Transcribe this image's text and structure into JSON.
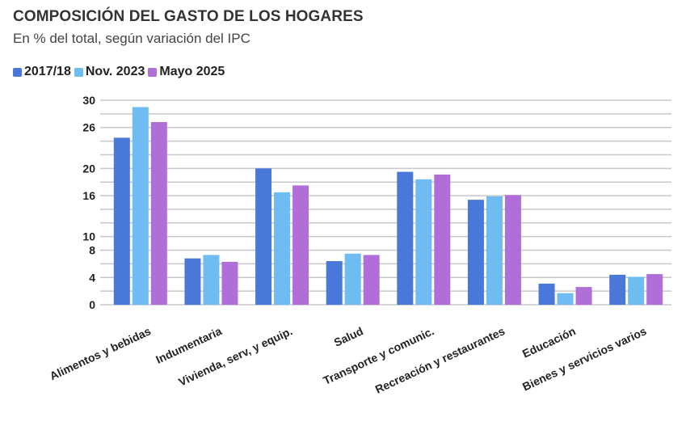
{
  "header": {
    "title": "COMPOSICIÓN DEL GASTO DE LOS HOGARES",
    "subtitle": "En % del total, según variación del IPC"
  },
  "colors": {
    "series_2017": "#4a78d9",
    "series_nov2023": "#6fbcf2",
    "series_may2025": "#b06fd8",
    "grid": "#c8c8c8",
    "text": "#222222"
  },
  "chart_data": {
    "type": "bar",
    "title": "COMPOSICIÓN DEL GASTO DE LOS HOGARES",
    "subtitle": "En % del total, según variación del IPC",
    "xlabel": "",
    "ylabel": "",
    "ylim": [
      0,
      30
    ],
    "yticks": [
      0,
      4,
      8,
      10,
      16,
      20,
      26,
      30
    ],
    "grid": true,
    "legend_position": "top-left",
    "categories": [
      "Alimentos y bebidas",
      "Indumentaria",
      "Vivienda, serv, y equip.",
      "Salud",
      "Transporte y comunic.",
      "Recreación y restaurantes",
      "Educación",
      "Bienes y servicios varios"
    ],
    "series": [
      {
        "name": "2017/18",
        "color": "#4a78d9",
        "values": [
          24.5,
          6.8,
          20.0,
          6.4,
          19.5,
          15.4,
          3.1,
          4.4
        ]
      },
      {
        "name": "Nov. 2023",
        "color": "#6fbcf2",
        "values": [
          29.0,
          7.3,
          16.5,
          7.5,
          18.4,
          15.9,
          1.7,
          4.1
        ]
      },
      {
        "name": "Mayo 2025",
        "color": "#b06fd8",
        "values": [
          26.8,
          6.3,
          17.5,
          7.3,
          19.1,
          16.1,
          2.6,
          4.5
        ]
      }
    ]
  }
}
